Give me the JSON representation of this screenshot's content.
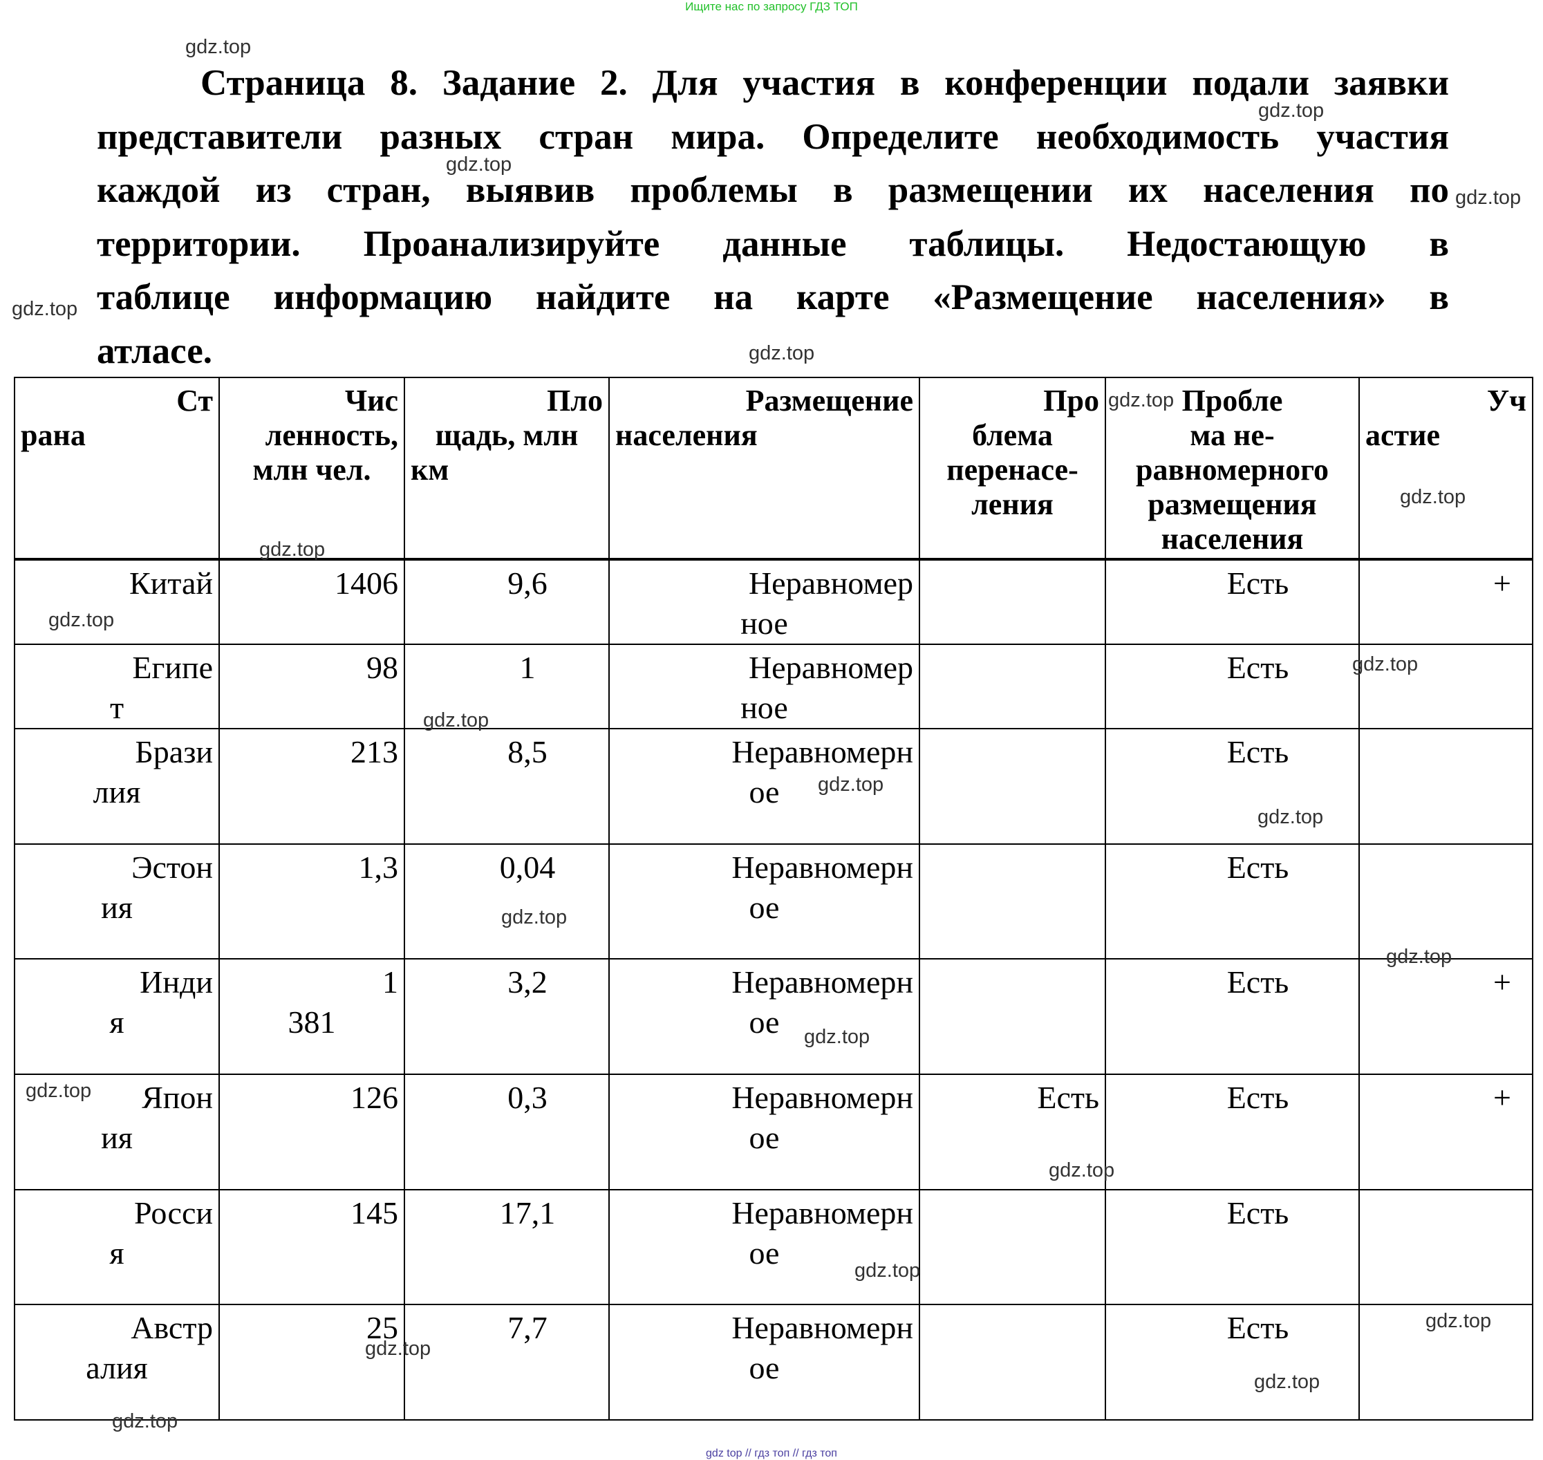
{
  "top_note": "Ищите нас по запросу ГДЗ ТОП",
  "task_lines": [
    "Страница 8. Задание 2. Для участия в конференции подали заявки",
    "представители разных стран мира. Определите необходимость участия",
    "каждой из стран, выявив проблемы в размещении их населения по",
    "территории. Проанализируйте данные таблицы. Недостающую в",
    "таблице информацию найдите на карте «Размещение населения» в",
    "атласе."
  ],
  "table": {
    "headers": [
      [
        "Ст",
        "рана"
      ],
      [
        "Чис",
        "ленность,",
        "млн чел."
      ],
      [
        "Пло",
        "щадь, млн",
        "км"
      ],
      [
        "Размещение",
        "населения"
      ],
      [
        "Про",
        "блема",
        "перенасе-",
        "ления"
      ],
      [
        "Пробле",
        "ма не-",
        "равномерного",
        "размещения",
        "населения"
      ],
      [
        "Уч",
        "астие"
      ]
    ],
    "rows": [
      {
        "country": [
          "Китай"
        ],
        "population": [
          "1406"
        ],
        "area": [
          "9,6"
        ],
        "distribution": [
          "Неравномер",
          "ное"
        ],
        "overpopulation": "",
        "uneven": "Есть",
        "participation": "+"
      },
      {
        "country": [
          "Египе",
          "т"
        ],
        "population": [
          "98"
        ],
        "area": [
          "1"
        ],
        "distribution": [
          "Неравномер",
          "ное"
        ],
        "overpopulation": "",
        "uneven": "Есть",
        "participation": ""
      },
      {
        "country": [
          "Брази",
          "лия"
        ],
        "population": [
          "213"
        ],
        "area": [
          "8,5"
        ],
        "distribution": [
          "Неравномерн",
          "ое"
        ],
        "overpopulation": "",
        "uneven": "Есть",
        "participation": ""
      },
      {
        "country": [
          "Эстон",
          "ия"
        ],
        "population": [
          "1,3"
        ],
        "area": [
          "0,04"
        ],
        "distribution": [
          "Неравномерн",
          "ое"
        ],
        "overpopulation": "",
        "uneven": "Есть",
        "participation": ""
      },
      {
        "country": [
          "Инди",
          "я"
        ],
        "population": [
          "1",
          "381"
        ],
        "area": [
          "3,2"
        ],
        "distribution": [
          "Неравномерн",
          "ое"
        ],
        "overpopulation": "",
        "uneven": "Есть",
        "participation": "+"
      },
      {
        "country": [
          "Япон",
          "ия"
        ],
        "population": [
          "126"
        ],
        "area": [
          "0,3"
        ],
        "distribution": [
          "Неравномерн",
          "ое"
        ],
        "overpopulation": "Есть",
        "uneven": "Есть",
        "participation": "+"
      },
      {
        "country": [
          "Росси",
          "я"
        ],
        "population": [
          "145"
        ],
        "area": [
          "17,1"
        ],
        "distribution": [
          "Неравномерн",
          "ое"
        ],
        "overpopulation": "",
        "uneven": "Есть",
        "participation": ""
      },
      {
        "country": [
          "Австр",
          "алия"
        ],
        "population": [
          "25"
        ],
        "area": [
          "7,7"
        ],
        "distribution": [
          "Неравномерн",
          "ое"
        ],
        "overpopulation": "",
        "uneven": "Есть",
        "participation": ""
      }
    ]
  },
  "watermark": "gdz.top",
  "footer": "gdz top  //  гдз топ  //  гдз топ"
}
